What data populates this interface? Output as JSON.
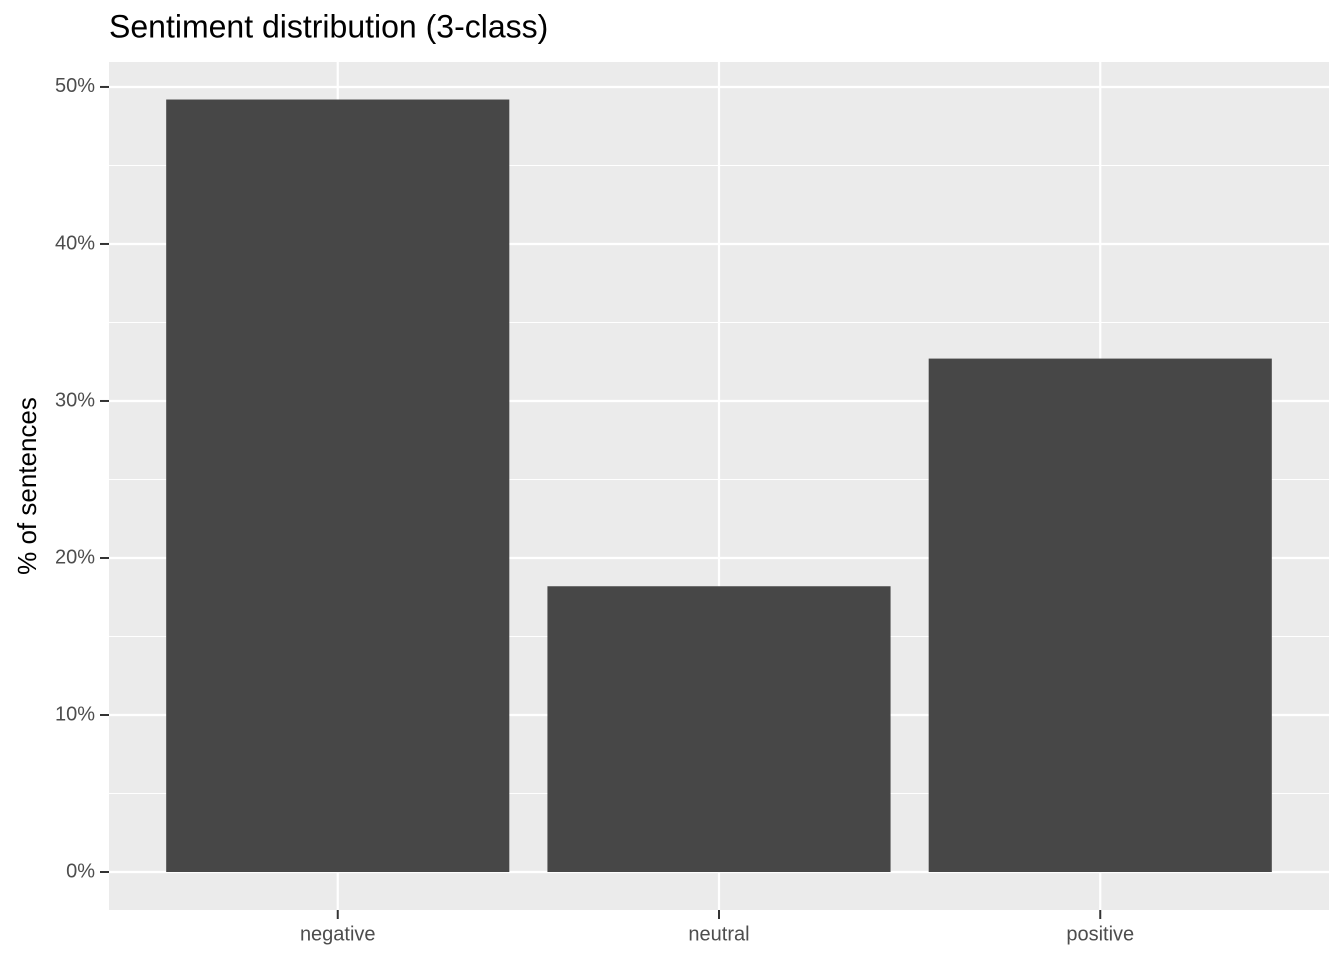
{
  "chart_data": {
    "type": "bar",
    "title": "Sentiment distribution (3-class)",
    "y_label": "% of sentences",
    "categories": [
      "negative",
      "neutral",
      "positive"
    ],
    "values": [
      49.2,
      18.2,
      32.7
    ],
    "color": "#474747",
    "ylim": [
      -2.42,
      51.59
    ],
    "yticks": [
      {
        "value": 0,
        "label": "0%"
      },
      {
        "value": 10,
        "label": "10%"
      },
      {
        "value": 20,
        "label": "20%"
      },
      {
        "value": 30,
        "label": "30%"
      },
      {
        "value": 40,
        "label": "40%"
      },
      {
        "value": 50,
        "label": "50%"
      }
    ],
    "yminor": [
      5,
      15,
      25,
      35,
      45
    ],
    "grid": true
  }
}
